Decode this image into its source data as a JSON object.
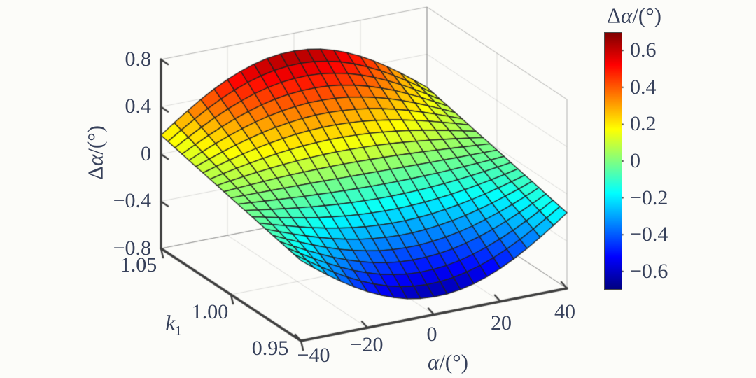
{
  "figure": {
    "background": "#fcfcf9",
    "text_color": "#36405a",
    "axis_color": "#3e3e3e",
    "mesh_edge_color": "#222222",
    "wall_grid_color": "rgba(120,120,120,0.25)",
    "wall_edge_color": "rgba(120,120,120,0.38)",
    "colorbar_tick_color": "#4a4a4a"
  },
  "chart_data": {
    "type": "surface3d",
    "colormap": "jet",
    "grid": "on",
    "x_axis": {
      "label": "α/(°)",
      "label_parts": {
        "italic": "α",
        "suffix": "/(°)"
      },
      "range": [
        -40,
        40
      ],
      "ticks": [
        -40,
        -20,
        0,
        20,
        40
      ],
      "tick_labels": [
        "−40",
        "−20",
        "0",
        "20",
        "40"
      ]
    },
    "y_axis": {
      "label": "k1",
      "label_parts": {
        "italic": "k",
        "sub": "1"
      },
      "range": [
        0.95,
        1.05
      ],
      "ticks": [
        1.05,
        1.0,
        0.95
      ],
      "tick_labels": [
        "1.05",
        "1.00",
        "0.95"
      ]
    },
    "z_axis": {
      "label": "Δα/(°)",
      "label_parts": {
        "prefix": "Δ",
        "italic": "α",
        "suffix": "/(°)"
      },
      "range": [
        -0.8,
        0.8
      ],
      "ticks": [
        0.8,
        0.4,
        0,
        -0.4,
        -0.8
      ],
      "tick_labels": [
        "0.8",
        "0.4",
        "0",
        "−0.4",
        "−0.8"
      ]
    },
    "colorbar": {
      "title": "Δα/(°)",
      "title_parts": {
        "prefix": "Δ",
        "italic": "α",
        "suffix": "/(°)"
      },
      "ticks": [
        0.6,
        0.4,
        0.2,
        0,
        -0.2,
        -0.4,
        -0.6
      ],
      "tick_labels": [
        "0.6",
        "0.4",
        "0.2",
        "0",
        "−0.2",
        "−0.4",
        "−0.6"
      ],
      "caxis": [
        -0.7,
        0.7
      ],
      "colormap": "jet"
    },
    "surface": {
      "description": "Angle-measurement error Δα over angle α and scale factor k1. Ridge of ≈ +0.65° along k1 = 1.05 near α ≈ 0; trough of ≈ −0.65° along k1 = 0.95 near α ≈ 0; edge values at α = ±40° shrink to ≈ ±0.12…0.16°.",
      "grid_cells": [
        20,
        20
      ],
      "z_model": {
        "cos_amp": 0.65,
        "sin_amp": -0.02,
        "freq_deg_per_deg": 1.94,
        "k1_center": 1.0,
        "k1_halfspan": 0.05,
        "formula": "Δα(α,k1) = 0.65·((k1−1)/0.05)·cos(1.94α) − 0.02·sin(1.94α)"
      },
      "z_max": 0.65,
      "z_min": -0.65,
      "key_points": {
        "corner_alpha-40_k1.05": 0.16,
        "corner_alpha-40_k0.95": -0.12,
        "corner_alpha40_k1.05": 0.12,
        "corner_alpha40_k0.95": -0.16,
        "ridge_max": 0.65,
        "trough_min": -0.65
      }
    }
  }
}
